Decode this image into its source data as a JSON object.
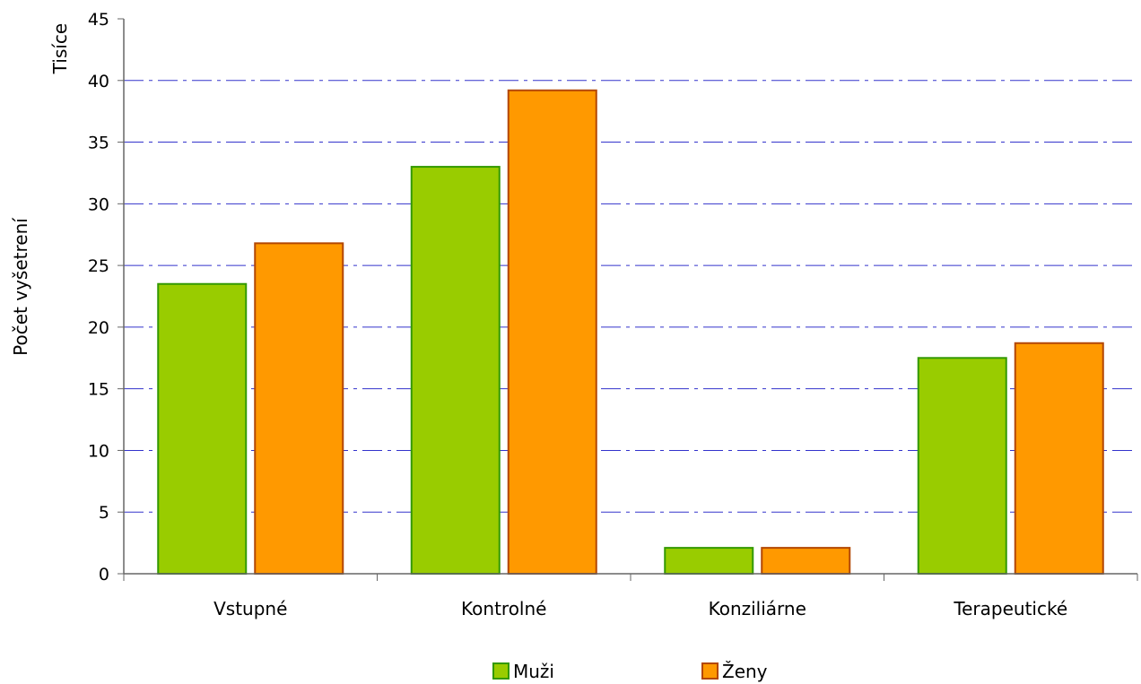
{
  "chart_data": {
    "type": "bar",
    "categories": [
      "Vstupné",
      "Kontrolné",
      "Konziliárne",
      "Terapeutické"
    ],
    "series": [
      {
        "name": "Muži",
        "values": [
          23.5,
          33.0,
          2.1,
          17.5
        ],
        "color": "#99cc00",
        "border": "#339900"
      },
      {
        "name": "Ženy",
        "values": [
          26.8,
          39.2,
          2.1,
          18.7
        ],
        "color": "#ff9900",
        "border": "#b34700"
      }
    ],
    "title": "",
    "xlabel": "",
    "ylabel": "Počet vyšetrení",
    "yunit": "Tisíce",
    "ylim": [
      0,
      45
    ],
    "yticks": [
      0,
      5,
      10,
      15,
      20,
      25,
      30,
      35,
      40,
      45
    ],
    "grid": true,
    "grid_color": "#3333cc",
    "legend_position": "bottom"
  }
}
